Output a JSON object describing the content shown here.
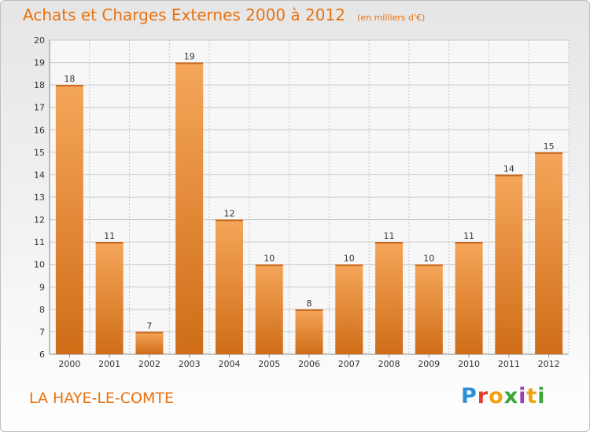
{
  "header": {
    "title": "Achats et Charges Externes 2000 à 2012",
    "subtitle": "(en milliers d'€)"
  },
  "footer": {
    "commune": "LA HAYE-LE-COMTE",
    "logo_text": "Proxiti"
  },
  "colors": {
    "accent": "#e8720f",
    "bar_top": "#f5a65a",
    "bar_bottom": "#cf6d17",
    "grid": "#c8c8c8"
  },
  "chart_data": {
    "type": "bar",
    "title": "Achats et Charges Externes 2000 à 2012",
    "subtitle": "(en milliers d'€)",
    "categories": [
      "2000",
      "2001",
      "2002",
      "2003",
      "2004",
      "2005",
      "2006",
      "2007",
      "2008",
      "2009",
      "2010",
      "2011",
      "2012"
    ],
    "values": [
      18,
      11,
      7,
      19,
      12,
      10,
      8,
      10,
      11,
      10,
      11,
      14,
      15
    ],
    "ylim": [
      6,
      20
    ],
    "yticks": [
      6,
      7,
      8,
      9,
      10,
      11,
      12,
      13,
      14,
      15,
      16,
      17,
      18,
      19,
      20
    ],
    "xlabel": "",
    "ylabel": "",
    "grid": true,
    "data_labels": true
  }
}
